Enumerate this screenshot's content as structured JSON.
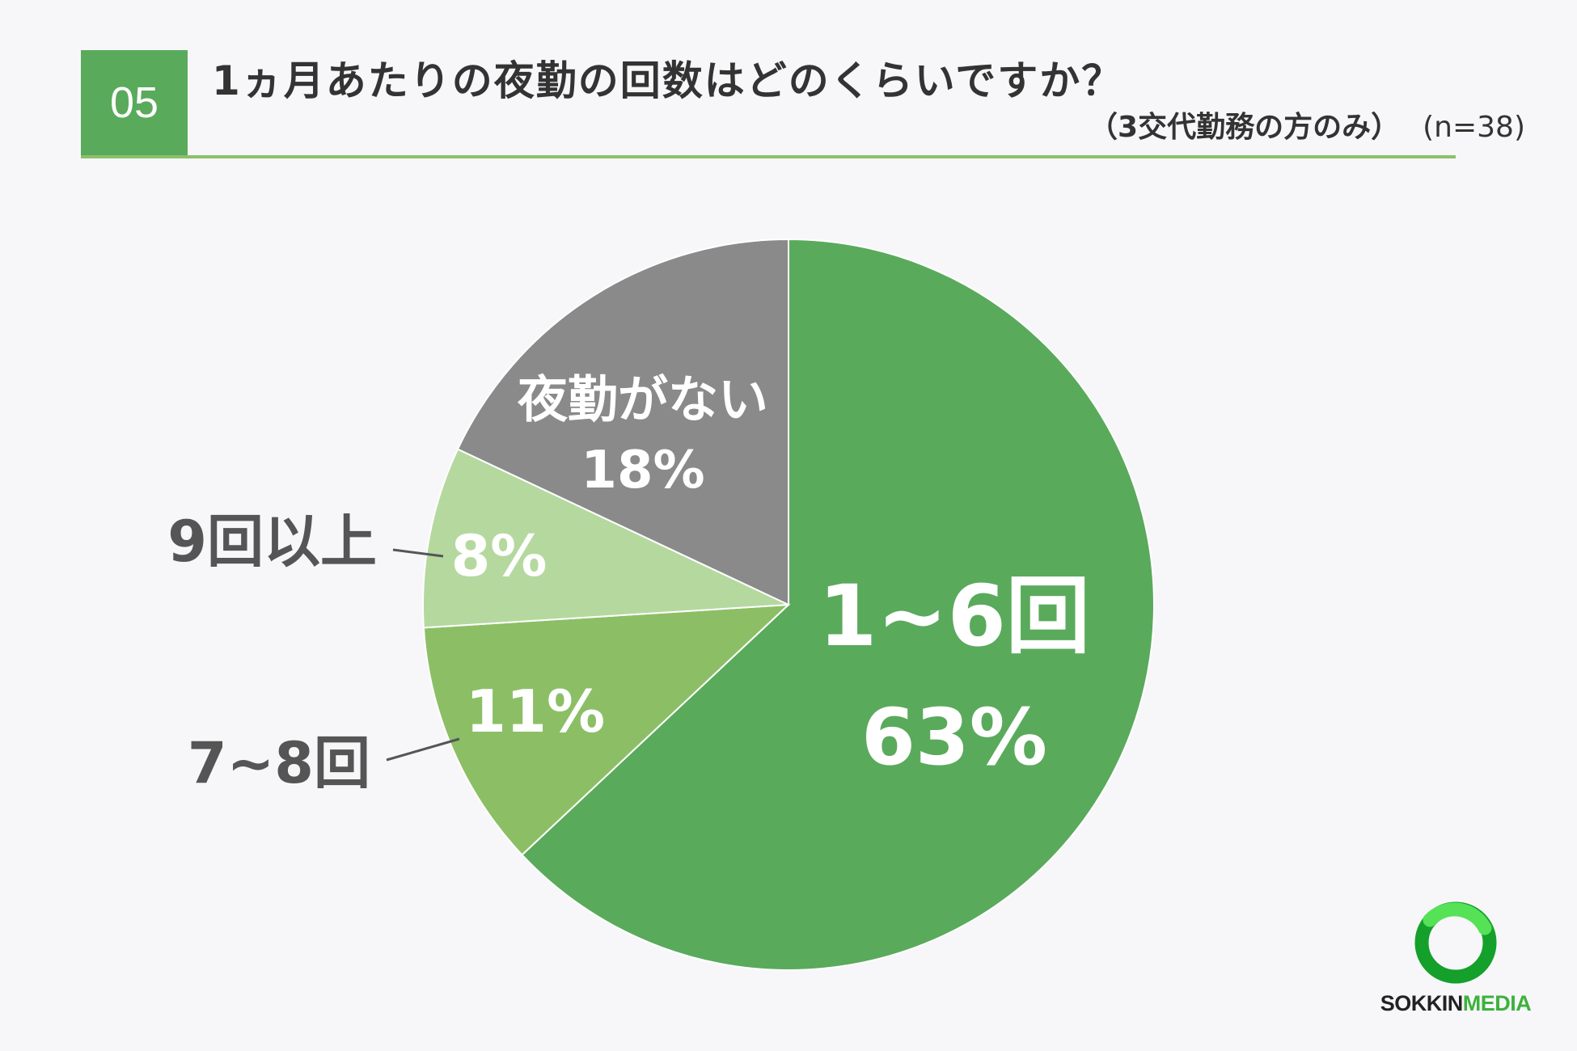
{
  "header": {
    "number": "05",
    "title": "1ヵ月あたりの夜勤の回数はどのくらいですか？",
    "subtitle": "（3交代勤務の方のみ）",
    "sample": "(n=38)"
  },
  "chart_data": {
    "type": "pie",
    "title": "1ヵ月あたりの夜勤の回数はどのくらいですか？",
    "categories": [
      "1~6回",
      "7~8回",
      "9回以上",
      "夜勤がない"
    ],
    "values": [
      63,
      11,
      8,
      18
    ],
    "value_labels": [
      "63%",
      "11%",
      "8%",
      "18%"
    ],
    "colors": [
      "#5aaa5c",
      "#8cbf65",
      "#b5d89f",
      "#8a8a8a"
    ],
    "start": "12 o'clock",
    "direction": "clockwise"
  },
  "logo": {
    "part1": "SOKKIN",
    "part2": "MEDIA",
    "color1": "#222222",
    "color2": "#3cb23c"
  }
}
